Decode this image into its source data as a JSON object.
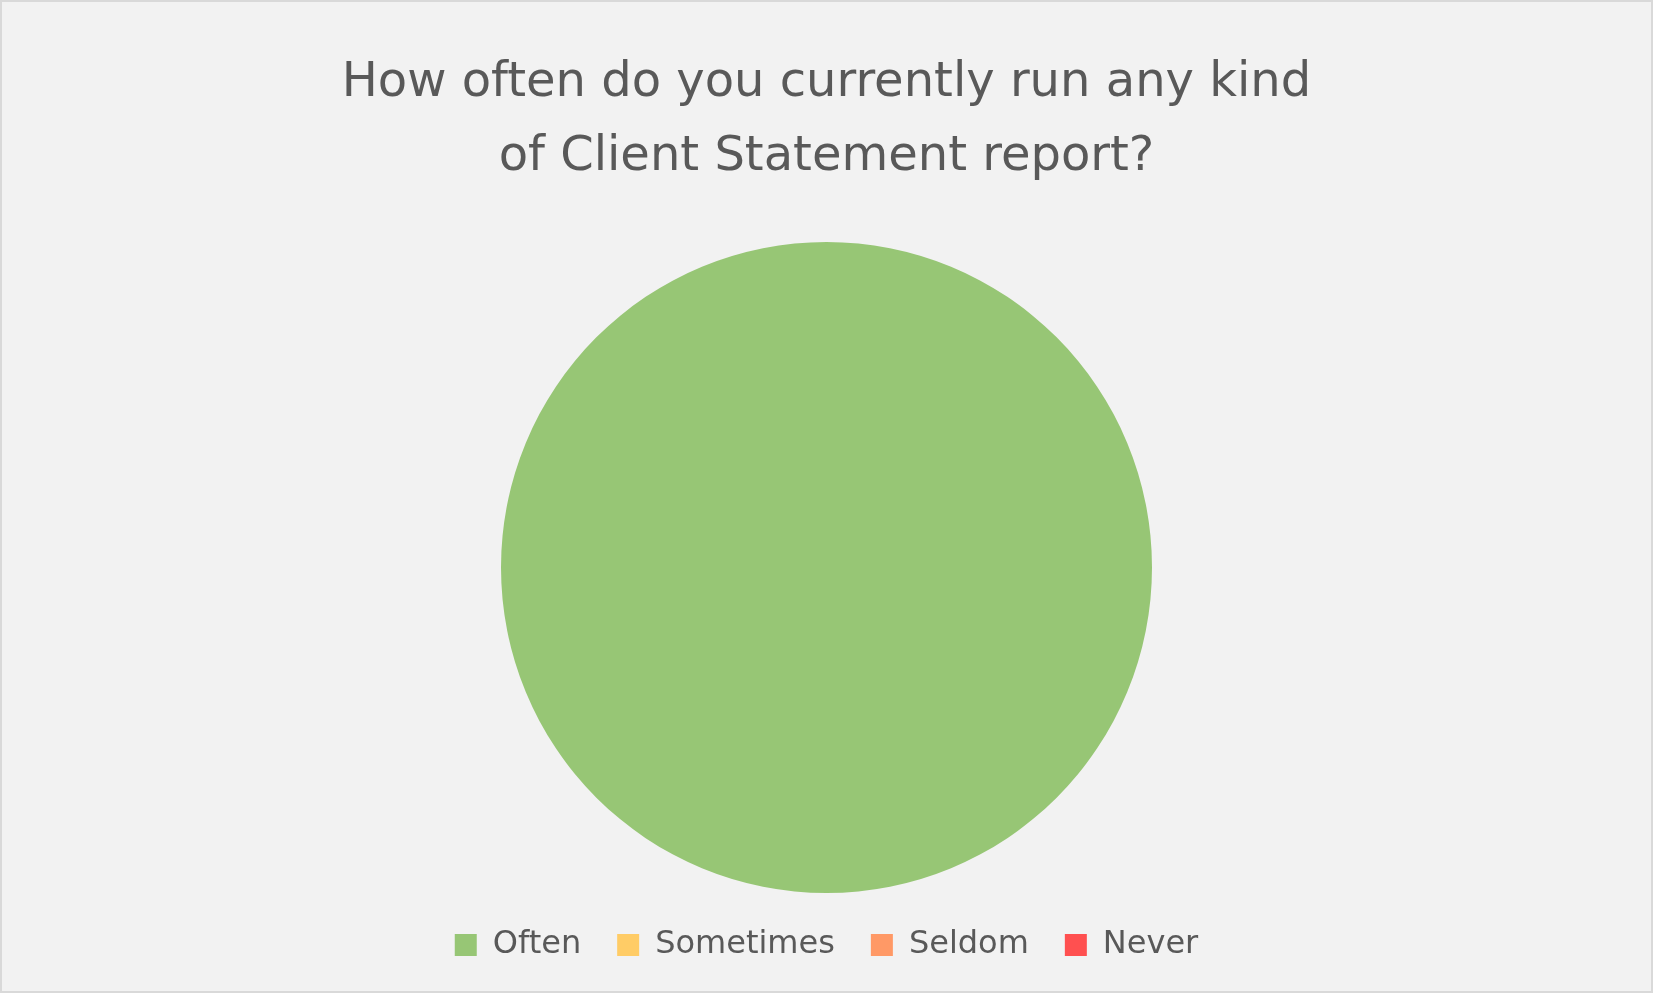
{
  "chart_data": {
    "type": "pie",
    "title": "How often do you currently run any kind of Client Statement report?",
    "categories": [
      "Often",
      "Sometimes",
      "Seldom",
      "Never"
    ],
    "values": [
      100,
      0,
      0,
      0
    ],
    "colors": [
      "#97c675",
      "#ffcc66",
      "#ff9966",
      "#ff5050"
    ],
    "legend": "bottom"
  }
}
